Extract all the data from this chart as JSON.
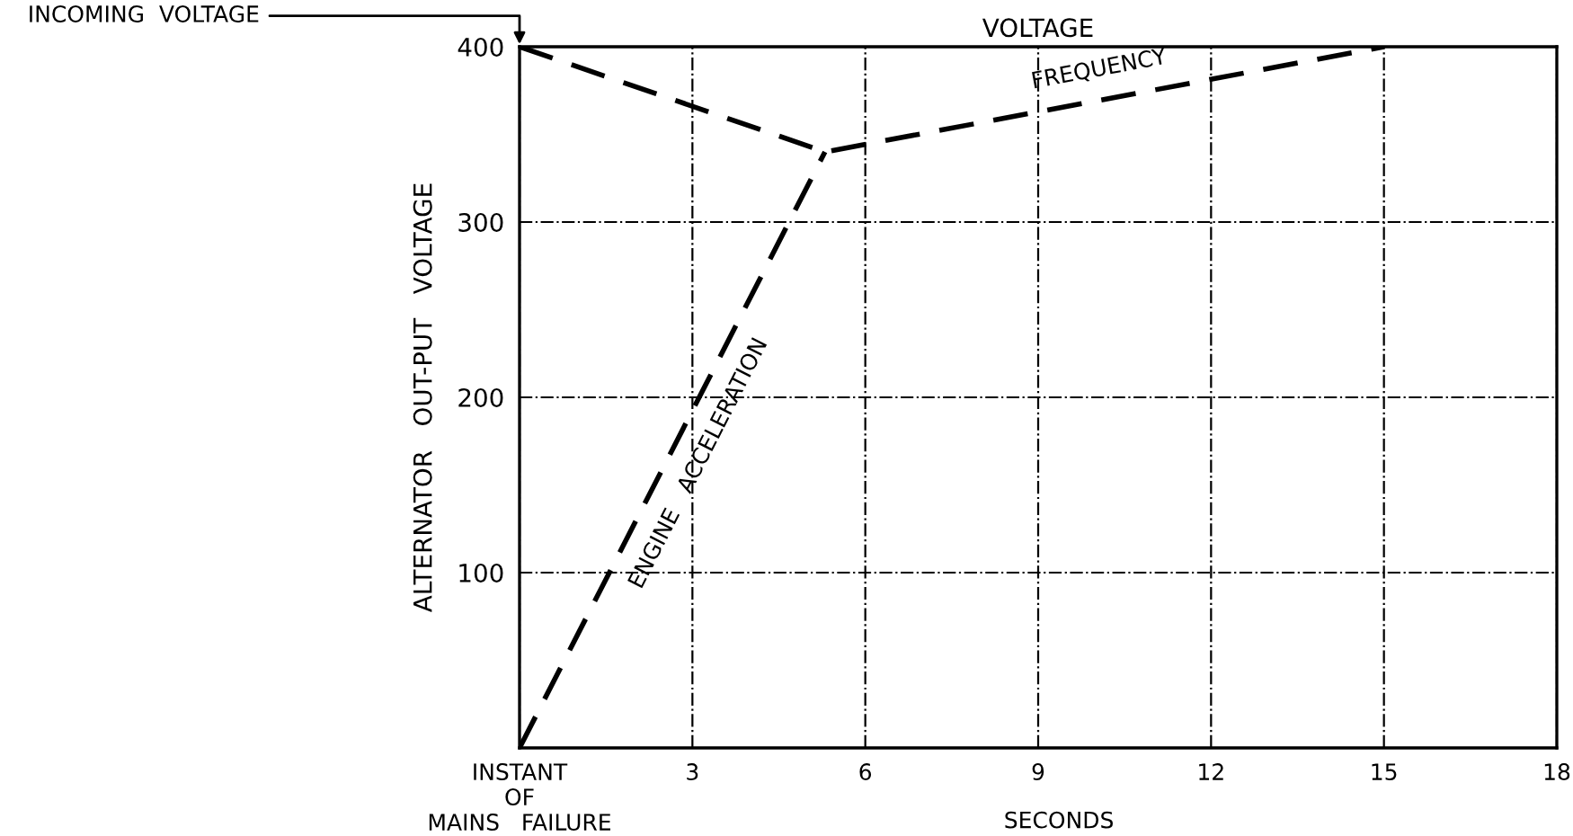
{
  "chart_data": {
    "type": "line",
    "title": "VOLTAGE",
    "xlabel": "SECONDS",
    "ylabel": "ALTERNATOR   OUT-PUT   VOLTAGE",
    "series": [
      {
        "name": "ENGINE   ACCELERATION",
        "color": "#000000",
        "x": [
          0,
          5.3
        ],
        "values": [
          0,
          340
        ],
        "line_style": "dashed"
      },
      {
        "name": "FREQUENCY",
        "color": "#000000",
        "x": [
          0,
          5.3,
          15
        ],
        "values": [
          400,
          340,
          400
        ],
        "line_style": "dashed"
      }
    ],
    "xlim": [
      0,
      18
    ],
    "ylim": [
      0,
      400
    ],
    "xticks": [
      {
        "value": 0,
        "label": "INSTANT\nOF\nMAINS   FAILURE"
      },
      3,
      6,
      9,
      12,
      15,
      18
    ],
    "yticks": [
      100,
      200,
      300,
      400
    ],
    "grid": true,
    "marker": "none",
    "legend": false,
    "annotations": [
      {
        "text": "INCOMING  VOLTAGE",
        "x": 0,
        "y": 400
      }
    ]
  }
}
